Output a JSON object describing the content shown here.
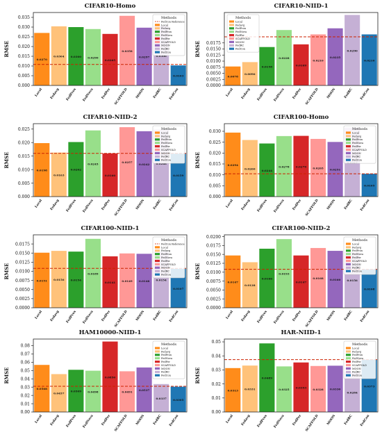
{
  "figure": {
    "methods": [
      "Local",
      "Fedavg",
      "FedProx",
      "FedNova",
      "FedPer",
      "SCAFFOLD",
      "MOON",
      "FedRC",
      "FedCon"
    ],
    "legend_title": "Methods",
    "reference_label": "FedCon Reference",
    "ylabel": "RMSE",
    "colors": {
      "Local": "#ff8c1a",
      "Fedavg": "#ffc27a",
      "FedProx": "#2ca02c",
      "FedNova": "#98df8a",
      "FedPer": "#d62728",
      "SCAFFOLD": "#ff9896",
      "MOON": "#9467bd",
      "FedRC": "#c5b0d5",
      "FedCon": "#1f77b4",
      "reference_line": "#cc2200"
    }
  },
  "chart_data": [
    {
      "type": "bar",
      "title": "CIFAR10-Homo",
      "ylabel": "RMSE",
      "categories": [
        "Local",
        "Fedavg",
        "FedProx",
        "FedNova",
        "FedPer",
        "SCAFFOLD",
        "MOON",
        "FedRC",
        "FedCon"
      ],
      "values": [
        0.027,
        0.0304,
        0.03,
        0.029,
        0.0265,
        0.0358,
        0.0297,
        0.0306,
        0.0103
      ],
      "value_labels": [
        "0.0270",
        "0.0304",
        "0.0300",
        "0.0290",
        "0.0265",
        "0.0358",
        "0.0297",
        "0.0306",
        "0.0103"
      ],
      "ylim": [
        0,
        0.0375
      ],
      "yticks": [
        0.0,
        0.005,
        0.01,
        0.015,
        0.02,
        0.025,
        0.03,
        0.035
      ],
      "tick_decimals": 3,
      "reference": 0.0108,
      "show_reference_in_legend": true,
      "legend": "top-right"
    },
    {
      "type": "bar",
      "title": "CIFAR10-NIID-1",
      "ylabel": "RMSE",
      "categories": [
        "Local",
        "Fedavg",
        "FedProx",
        "FedNova",
        "FedPer",
        "SCAFFOLD",
        "MOON",
        "FedRC",
        "FedCon"
      ],
      "values": [
        0.0078,
        0.0096,
        0.0158,
        0.0228,
        0.0169,
        0.021,
        0.0235,
        0.029,
        0.021
      ],
      "value_labels": [
        "0.0078",
        "0.0096",
        "0.0158",
        "0.0228",
        "0.0169",
        "0.0210",
        "0.0235",
        "0.0290",
        "0.0210"
      ],
      "ylim": [
        0,
        0.03
      ],
      "yticks": [
        0.0,
        0.0025,
        0.005,
        0.0075,
        0.01,
        0.0125,
        0.015,
        0.0175
      ],
      "tick_decimals": 4,
      "reference": 0.02,
      "show_reference_in_legend": false,
      "legend": "top-left"
    },
    {
      "type": "bar",
      "title": "CIFAR10-NIID-2",
      "ylabel": "RMSE",
      "categories": [
        "Local",
        "Fedavg",
        "FedProx",
        "FedNova",
        "FedPer",
        "SCAFFOLD",
        "MOON",
        "FedRC",
        "FedCon"
      ],
      "values": [
        0.0198,
        0.0163,
        0.0202,
        0.0245,
        0.016,
        0.0257,
        0.0242,
        0.0248,
        0.0159
      ],
      "value_labels": [
        "0.0198",
        "0.0163",
        "0.0202",
        "0.0245",
        "0.0160",
        "0.0257",
        "0.0242",
        "0.0248",
        "0.0159"
      ],
      "ylim": [
        0,
        0.027
      ],
      "yticks": [
        0.0,
        0.005,
        0.01,
        0.015,
        0.02,
        0.025
      ],
      "tick_decimals": 3,
      "reference": 0.016,
      "show_reference_in_legend": false,
      "legend": "top-right"
    },
    {
      "type": "bar",
      "title": "CIFAR100-Homo",
      "ylabel": "RMSE",
      "categories": [
        "Local",
        "Fedavg",
        "FedProx",
        "FedNova",
        "FedPer",
        "SCAFFOLD",
        "MOON",
        "FedRC",
        "FedCon"
      ],
      "values": [
        0.0294,
        0.026,
        0.0244,
        0.0278,
        0.0279,
        0.0265,
        0.0251,
        0.0317,
        0.0105
      ],
      "value_labels": [
        "0.0294",
        "0.0260",
        "0.0244",
        "0.0278",
        "0.0279",
        "0.0265",
        "0.0251",
        "0.0317",
        "0.0105"
      ],
      "ylim": [
        0,
        0.0335
      ],
      "yticks": [
        0.0,
        0.005,
        0.01,
        0.015,
        0.02,
        0.025,
        0.03
      ],
      "tick_decimals": 3,
      "reference": 0.0105,
      "show_reference_in_legend": false,
      "legend": "top-right"
    },
    {
      "type": "bar",
      "title": "CIFAR100-NIID-1",
      "ylabel": "RMSE",
      "categories": [
        "Local",
        "Fedavg",
        "FedProx",
        "FedNova",
        "FedPer",
        "SCAFFOLD",
        "MOON",
        "FedRC",
        "FedCon"
      ],
      "values": [
        0.0151,
        0.0156,
        0.0154,
        0.0189,
        0.0141,
        0.0149,
        0.0148,
        0.0154,
        0.0107
      ],
      "value_labels": [
        "0.0151",
        "0.0156",
        "0.0154",
        "0.0189",
        "0.0141",
        "0.0149",
        "0.0148",
        "0.0154",
        "0.0107"
      ],
      "ylim": [
        0,
        0.02
      ],
      "yticks": [
        0.0,
        0.0025,
        0.005,
        0.0075,
        0.01,
        0.0125,
        0.015,
        0.0175
      ],
      "tick_decimals": 4,
      "reference": 0.0108,
      "show_reference_in_legend": true,
      "legend": "top-right"
    },
    {
      "type": "bar",
      "title": "CIFAR100-NIID-2",
      "ylabel": "RMSE",
      "categories": [
        "Local",
        "Fedavg",
        "FedProx",
        "FedNova",
        "FedPer",
        "SCAFFOLD",
        "MOON",
        "FedRC",
        "FedCon"
      ],
      "values": [
        0.0147,
        0.0128,
        0.0166,
        0.0193,
        0.0147,
        0.0168,
        0.016,
        0.0156,
        0.0108
      ],
      "value_labels": [
        "0.0147",
        "0.0128",
        "0.0166",
        "0.0193",
        "0.0147",
        "0.0168",
        "0.0160",
        "0.0156",
        "0.0108"
      ],
      "ylim": [
        0,
        0.0205
      ],
      "yticks": [
        0.0,
        0.0025,
        0.005,
        0.0075,
        0.01,
        0.0125,
        0.015,
        0.0175,
        0.02
      ],
      "tick_decimals": 4,
      "reference": 0.0108,
      "show_reference_in_legend": false,
      "legend": "top-right"
    },
    {
      "type": "bar",
      "title": "HAM10000-NIID-1",
      "ylabel": "RMSE",
      "categories": [
        "Local",
        "Fedavg",
        "FedProx",
        "FedNova",
        "FedPer",
        "SCAFFOLD",
        "MOON",
        "FedRC",
        "FedCon"
      ],
      "values": [
        0.0568,
        0.0457,
        0.0509,
        0.0498,
        0.085,
        0.0491,
        0.0537,
        0.0337,
        0.0305
      ],
      "value_labels": [
        "0.0568",
        "0.0457",
        "0.0509",
        "0.0498",
        "0.0850",
        "0.0491",
        "0.0537",
        "0.0337",
        "0.0305"
      ],
      "ylim": [
        0,
        0.088
      ],
      "yticks": [
        0.0,
        0.01,
        0.02,
        0.03,
        0.04,
        0.05,
        0.06,
        0.07,
        0.08
      ],
      "tick_decimals": 2,
      "reference": 0.031,
      "show_reference_in_legend": false,
      "legend": "top-right"
    },
    {
      "type": "bar",
      "title": "HAR-NIID-1",
      "ylabel": "RMSE",
      "categories": [
        "Local",
        "Fedavg",
        "FedProx",
        "FedNova",
        "FedPer",
        "SCAFFOLD",
        "MOON",
        "FedRC",
        "FedCon"
      ],
      "values": [
        0.0313,
        0.0331,
        0.0489,
        0.0325,
        0.0353,
        0.0328,
        0.033,
        0.0284,
        0.0373
      ],
      "value_labels": [
        "0.0313",
        "0.0331",
        "0.0489",
        "0.0325",
        "0.0353",
        "0.0328",
        "0.0330",
        "0.0284",
        "0.0373"
      ],
      "ylim": [
        0,
        0.052
      ],
      "yticks": [
        0.0,
        0.01,
        0.02,
        0.03,
        0.04,
        0.05
      ],
      "tick_decimals": 2,
      "reference": 0.0373,
      "show_reference_in_legend": false,
      "legend": "top-right"
    }
  ]
}
